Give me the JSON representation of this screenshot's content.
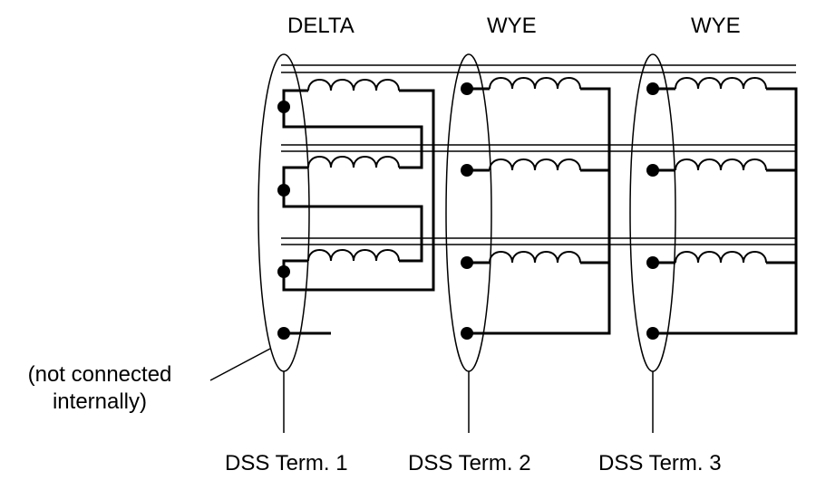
{
  "headers": {
    "delta": "DELTA",
    "wye_2": "WYE",
    "wye_3": "WYE"
  },
  "terminals": {
    "t1": "DSS Term. 1",
    "t2": "DSS Term. 2",
    "t3": "DSS Term. 3"
  },
  "note": {
    "line1": "(not connected",
    "line2": "internally)"
  },
  "colors": {
    "ink": "#000000",
    "background": "#ffffff"
  }
}
